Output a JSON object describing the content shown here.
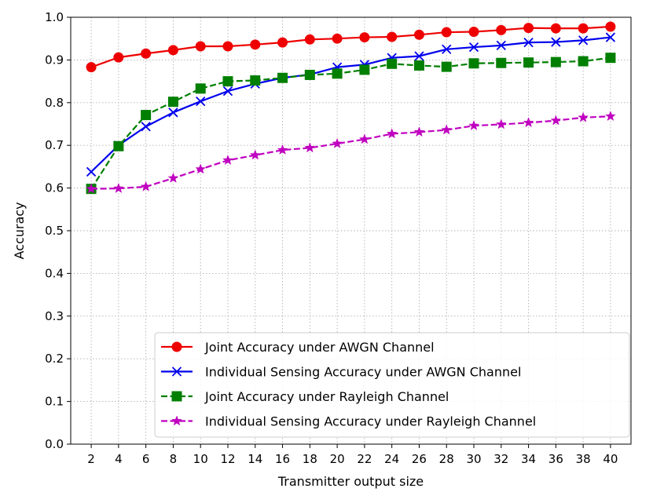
{
  "chart_data": {
    "type": "line",
    "xlabel": "Transmitter output size",
    "ylabel": "Accuracy",
    "x": [
      2,
      4,
      6,
      8,
      10,
      12,
      14,
      16,
      18,
      20,
      22,
      24,
      26,
      28,
      30,
      32,
      34,
      36,
      38,
      40
    ],
    "xlim": [
      0.5,
      41.5
    ],
    "ylim": [
      0.0,
      1.0
    ],
    "xticks": [
      "2",
      "4",
      "6",
      "8",
      "10",
      "12",
      "14",
      "16",
      "18",
      "20",
      "22",
      "24",
      "26",
      "28",
      "30",
      "32",
      "34",
      "36",
      "38",
      "40"
    ],
    "yticks": [
      "0.0",
      "0.1",
      "0.2",
      "0.3",
      "0.4",
      "0.5",
      "0.6",
      "0.7",
      "0.8",
      "0.9",
      "1.0"
    ],
    "grid": true,
    "legend_position": "lower-right",
    "series": [
      {
        "name": "Joint Accuracy under AWGN Channel",
        "color": "#ee0000",
        "linestyle": "solid",
        "marker": "circle",
        "values": [
          0.883,
          0.906,
          0.915,
          0.923,
          0.932,
          0.932,
          0.936,
          0.941,
          0.948,
          0.95,
          0.953,
          0.954,
          0.959,
          0.965,
          0.966,
          0.97,
          0.975,
          0.974,
          0.974,
          0.978
        ]
      },
      {
        "name": "Individual Sensing Accuracy under AWGN Channel",
        "color": "#0000ee",
        "linestyle": "solid",
        "marker": "x",
        "values": [
          0.638,
          0.7,
          0.744,
          0.777,
          0.803,
          0.827,
          0.844,
          0.858,
          0.866,
          0.883,
          0.889,
          0.905,
          0.909,
          0.925,
          0.93,
          0.934,
          0.941,
          0.942,
          0.946,
          0.953
        ]
      },
      {
        "name": "Joint Accuracy under Rayleigh Channel",
        "color": "#007f00",
        "linestyle": "dashed",
        "marker": "square",
        "values": [
          0.598,
          0.698,
          0.771,
          0.802,
          0.833,
          0.85,
          0.852,
          0.858,
          0.865,
          0.868,
          0.877,
          0.891,
          0.887,
          0.884,
          0.892,
          0.893,
          0.894,
          0.895,
          0.897,
          0.905
        ]
      },
      {
        "name": "Individual Sensing Accuracy under Rayleigh Channel",
        "color": "#c000c0",
        "linestyle": "dashed",
        "marker": "star",
        "values": [
          0.598,
          0.599,
          0.603,
          0.623,
          0.644,
          0.665,
          0.677,
          0.689,
          0.694,
          0.704,
          0.714,
          0.727,
          0.731,
          0.736,
          0.746,
          0.749,
          0.753,
          0.758,
          0.765,
          0.768
        ]
      }
    ]
  }
}
